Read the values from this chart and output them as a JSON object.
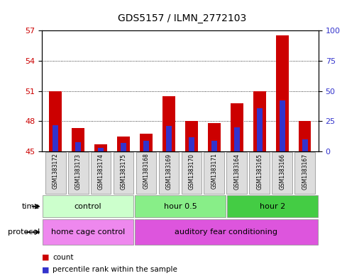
{
  "title": "GDS5157 / ILMN_2772103",
  "samples": [
    "GSM1383172",
    "GSM1383173",
    "GSM1383174",
    "GSM1383175",
    "GSM1383168",
    "GSM1383169",
    "GSM1383170",
    "GSM1383171",
    "GSM1383164",
    "GSM1383165",
    "GSM1383166",
    "GSM1383167"
  ],
  "count_values": [
    51.0,
    47.3,
    45.7,
    46.5,
    46.8,
    50.5,
    48.0,
    47.8,
    49.8,
    51.0,
    56.5,
    48.0
  ],
  "percentile_values": [
    22,
    8,
    3,
    7,
    9,
    21,
    12,
    9,
    20,
    36,
    42,
    10
  ],
  "count_base": 45,
  "ylim_left": [
    45,
    57
  ],
  "ylim_right": [
    0,
    100
  ],
  "yticks_left": [
    45,
    48,
    51,
    54,
    57
  ],
  "yticks_right": [
    0,
    25,
    50,
    75,
    100
  ],
  "bar_color_red": "#CC0000",
  "bar_color_blue": "#3333CC",
  "time_groups": [
    {
      "label": "control",
      "start": 0,
      "end": 4,
      "color": "#CCFFCC"
    },
    {
      "label": "hour 0.5",
      "start": 4,
      "end": 8,
      "color": "#88EE88"
    },
    {
      "label": "hour 2",
      "start": 8,
      "end": 12,
      "color": "#44CC44"
    }
  ],
  "protocol_groups": [
    {
      "label": "home cage control",
      "start": 0,
      "end": 4,
      "color": "#EE88EE"
    },
    {
      "label": "auditory fear conditioning",
      "start": 4,
      "end": 12,
      "color": "#DD55DD"
    }
  ],
  "legend_items": [
    {
      "color": "#CC0000",
      "label": "count"
    },
    {
      "color": "#3333CC",
      "label": "percentile rank within the sample"
    }
  ],
  "background_color": "white",
  "bar_width": 0.55,
  "blue_bar_width": 0.25
}
